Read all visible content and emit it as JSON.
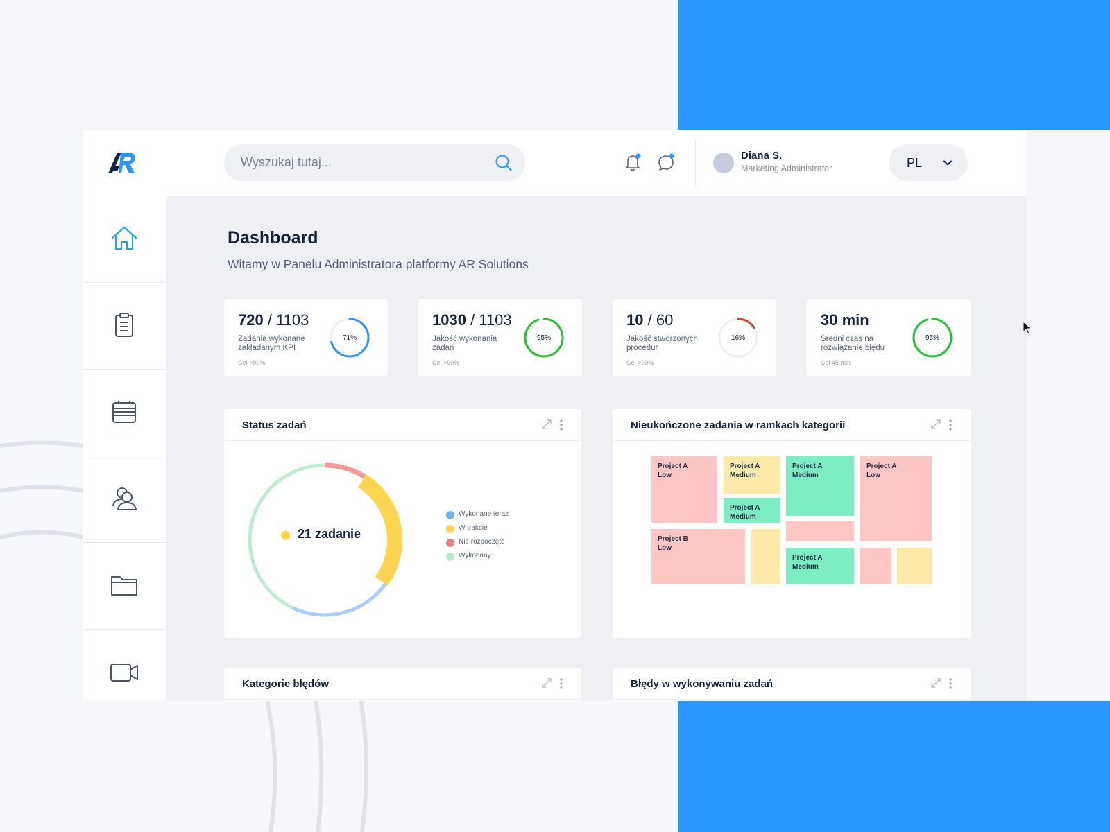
{
  "brand": {
    "logo_text": "AR"
  },
  "header": {
    "search_placeholder": "Wyszukaj tutaj...",
    "user": {
      "name": "Diana S.",
      "role": "Marketing Administrator"
    },
    "language": "PL"
  },
  "sidebar": {
    "items": [
      {
        "icon": "home-icon"
      },
      {
        "icon": "clipboard-icon"
      },
      {
        "icon": "calendar-icon"
      },
      {
        "icon": "users-icon"
      },
      {
        "icon": "folder-icon"
      },
      {
        "icon": "video-icon"
      }
    ]
  },
  "dashboard": {
    "title": "Dashboard",
    "subtitle": "Witamy w Panelu Administratora platformy AR Solutions"
  },
  "kpis": [
    {
      "value": "720",
      "total": "/ 1103",
      "label": "Zadania wykonane zakładanym KPI",
      "goal": "Cel >90%",
      "percent": 71,
      "percent_label": "71%",
      "color": "#2997ff"
    },
    {
      "value": "1030",
      "total": "/ 1103",
      "label": "Jakość wykonania zadań",
      "goal": "Cel >90%",
      "percent": 95,
      "percent_label": "95%",
      "color": "#22c436"
    },
    {
      "value": "10",
      "total": "/ 60",
      "label": "Jakość stworzonych procedur",
      "goal": "Cel >90%",
      "percent": 16,
      "percent_label": "16%",
      "color": "#e53935"
    },
    {
      "value": "30 min",
      "total": "",
      "label": "Sredni czas na rozwiązanie błędu",
      "goal": "Cel 45 min",
      "percent": 95,
      "percent_label": "95%",
      "color": "#22c436"
    }
  ],
  "status_panel": {
    "title": "Status zadań",
    "center_label": "21 zadanie",
    "legend": [
      {
        "label": "Wykonane teraz",
        "color": "#6cb6ff"
      },
      {
        "label": "W trakcie",
        "color": "#ffd54f"
      },
      {
        "label": "Nie rozpoczęte",
        "color": "#f07f82"
      },
      {
        "label": "Wykonany",
        "color": "#b8ecc9"
      }
    ]
  },
  "chart_data": {
    "type": "pie",
    "series": [
      {
        "name": "Wykonane teraz",
        "value": 22,
        "color": "#a9cdf6"
      },
      {
        "name": "W trakcie",
        "value": 26,
        "color": "#ffd54f"
      },
      {
        "name": "Nie rozpoczęte",
        "value": 9,
        "color": "#f49a9c"
      },
      {
        "name": "Wykonany",
        "value": 43,
        "color": "#bfecd0"
      }
    ],
    "center_text": "21 zadanie"
  },
  "treemap_panel": {
    "title": "Nieukończone zadania w ramkach kategorii",
    "tiles": [
      {
        "label": "Project A\nLow",
        "color": "#ffc6c6"
      },
      {
        "label": "Project A\nMedium",
        "color": "#fde9a8"
      },
      {
        "label": "Project A\nMedium",
        "color": "#7fedc3"
      },
      {
        "label": "Project A\nLow",
        "color": "#ffc6c6"
      },
      {
        "label": "Project A\nMedium",
        "color": "#7fedc3"
      },
      {
        "label": "",
        "color": "#ffc6c6"
      },
      {
        "label": "Project B\nLow",
        "color": "#ffc6c6"
      },
      {
        "label": "",
        "color": "#fde9a8"
      },
      {
        "label": "Project A\nMedium",
        "color": "#7fedc3"
      },
      {
        "label": "",
        "color": "#ffc6c6"
      },
      {
        "label": "",
        "color": "#fde9a8"
      }
    ]
  },
  "bottom_panels": [
    {
      "title": "Kategorie błędów"
    },
    {
      "title": "Błędy w wykonywaniu zadań"
    }
  ]
}
